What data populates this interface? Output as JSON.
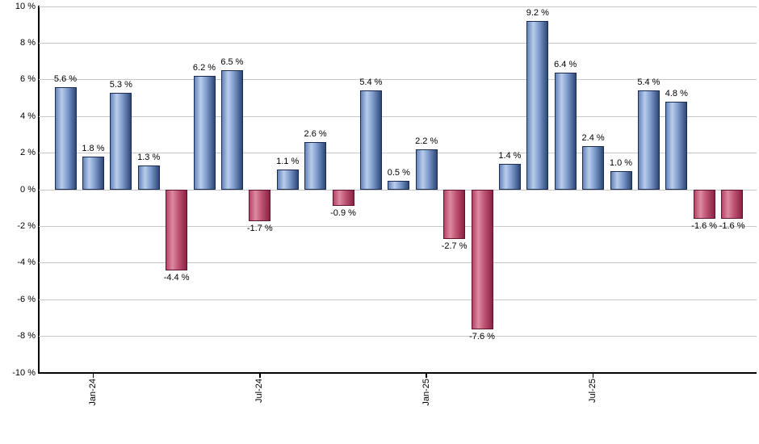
{
  "chart_data": {
    "type": "bar",
    "title": "",
    "ylabel": "",
    "xlabel": "",
    "ylim": [
      -10,
      10
    ],
    "grid": "horizontal",
    "legend": "none",
    "y_ticks": [
      {
        "value": 10,
        "label": "10 %"
      },
      {
        "value": 8,
        "label": "8 %"
      },
      {
        "value": 6,
        "label": "6 %"
      },
      {
        "value": 4,
        "label": "4 %"
      },
      {
        "value": 2,
        "label": "2 %"
      },
      {
        "value": 0,
        "label": "0 %"
      },
      {
        "value": -2,
        "label": "-2 %"
      },
      {
        "value": -4,
        "label": "-4 %"
      },
      {
        "value": -6,
        "label": "-6 %"
      },
      {
        "value": -8,
        "label": "-8 %"
      },
      {
        "value": -10,
        "label": "-10 %"
      }
    ],
    "x_ticks": [
      {
        "label": "Jan-24",
        "bar_index": 1
      },
      {
        "label": "Jul-24",
        "bar_index": 7
      },
      {
        "label": "Jan-25",
        "bar_index": 13
      },
      {
        "label": "Jul-25",
        "bar_index": 19
      }
    ],
    "bars": [
      {
        "value": 5.6,
        "label": "5.6 %"
      },
      {
        "value": 1.8,
        "label": "1.8 %"
      },
      {
        "value": 5.3,
        "label": "5.3 %"
      },
      {
        "value": 1.3,
        "label": "1.3 %"
      },
      {
        "value": -4.4,
        "label": "-4.4 %"
      },
      {
        "value": 6.2,
        "label": "6.2 %"
      },
      {
        "value": 6.5,
        "label": "6.5 %"
      },
      {
        "value": -1.7,
        "label": "-1.7 %"
      },
      {
        "value": 1.1,
        "label": "1.1 %"
      },
      {
        "value": 2.6,
        "label": "2.6 %"
      },
      {
        "value": -0.9,
        "label": "-0.9 %"
      },
      {
        "value": 5.4,
        "label": "5.4 %"
      },
      {
        "value": 0.5,
        "label": "0.5 %"
      },
      {
        "value": 2.2,
        "label": "2.2 %"
      },
      {
        "value": -2.7,
        "label": "-2.7 %"
      },
      {
        "value": -7.6,
        "label": "-7.6 %"
      },
      {
        "value": 1.4,
        "label": "1.4 %"
      },
      {
        "value": 9.2,
        "label": "9.2 %"
      },
      {
        "value": 6.4,
        "label": "6.4 %"
      },
      {
        "value": 2.4,
        "label": "2.4 %"
      },
      {
        "value": 1.0,
        "label": "1.0 %"
      },
      {
        "value": 5.4,
        "label": "5.4 %"
      },
      {
        "value": 4.8,
        "label": "4.8 %"
      },
      {
        "value": -1.6,
        "label": "-1.6 %"
      },
      {
        "value": -1.6,
        "label": "-1.6 %"
      }
    ]
  },
  "colors": {
    "positive_edge": "#6484B9",
    "positive_light": "#BACDEB",
    "positive_mid": "#7E9CCD",
    "positive_dark": "#2E4878",
    "positive_border": "#1A2B52",
    "negative_edge": "#B64465",
    "negative_light": "#DD8BA2",
    "negative_mid": "#C05674",
    "negative_dark": "#8C2144",
    "negative_border": "#5E142F",
    "gridline": "#C8C8C8",
    "axis": "#000000",
    "text": "#000000",
    "background": "#FFFFFF"
  }
}
